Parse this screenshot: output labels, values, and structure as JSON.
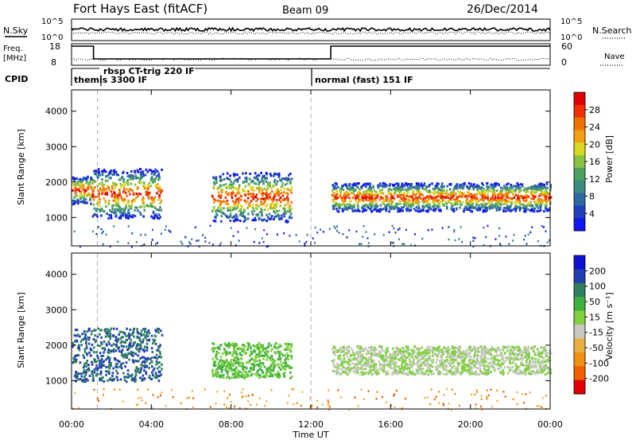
{
  "header": {
    "radar": "Fort Hays East (fitACF)",
    "beam": "Beam 09",
    "date": "26/Dec/2014"
  },
  "top_panels": {
    "nsky_label": "N.Sky",
    "nsky_ticks": [
      "10^5",
      "10^0"
    ],
    "nsky_ticks_right": [
      "10^5",
      "10^0"
    ],
    "nsearch_label": "N.Search",
    "freq_label": "Freq.",
    "freq_unit": "[MHz]",
    "freq_ticks": [
      "18",
      "8"
    ],
    "nave_ticks": [
      "60",
      "0"
    ],
    "nave_label": "Nave",
    "cpid_label": "CPID",
    "cpid_modes": [
      {
        "label": "themis 3300 IF",
        "start_hour": 0.0
      },
      {
        "label": "rbsp CT-trig 220 IF",
        "start_hour": 1.3
      },
      {
        "label": "normal (fast) 151 IF",
        "start_hour": 12.0
      }
    ]
  },
  "chart_data": [
    {
      "type": "heatmap",
      "name": "power",
      "ylabel": "Slant Range [km]",
      "xlabel": "Time UT",
      "xlim": [
        0,
        24
      ],
      "ylim": [
        200,
        4600
      ],
      "yticks": [
        1000,
        2000,
        3000,
        4000
      ],
      "xtick_labels": [
        "00:00",
        "04:00",
        "08:00",
        "12:00",
        "16:00",
        "20:00",
        "00:00"
      ],
      "colorbar": {
        "label": "Power [dB]",
        "tick_labels": [
          "4",
          "8",
          "12",
          "16",
          "20",
          "24",
          "28"
        ],
        "colors": [
          "#1018f0",
          "#2040c0",
          "#2e6aa0",
          "#3c8a80",
          "#4ca060",
          "#8cc040",
          "#d8d820",
          "#f0a010",
          "#f07000",
          "#f03000",
          "#e00000"
        ]
      },
      "scatter_bands": [
        {
          "hours": [
            0.0,
            1.0
          ],
          "range_km": [
            1400,
            2200
          ]
        },
        {
          "hours": [
            1.0,
            4.5
          ],
          "range_km": [
            1000,
            2400
          ]
        },
        {
          "hours": [
            7.0,
            11.0
          ],
          "range_km": [
            900,
            2300
          ]
        },
        {
          "hours": [
            13.0,
            24.0
          ],
          "range_km": [
            1200,
            2000
          ]
        }
      ]
    },
    {
      "type": "heatmap",
      "name": "velocity",
      "ylabel": "Slant Range [km]",
      "xlabel": "Time UT",
      "xlim": [
        0,
        24
      ],
      "ylim": [
        200,
        4600
      ],
      "yticks": [
        1000,
        2000,
        3000,
        4000
      ],
      "xtick_labels": [
        "00:00",
        "04:00",
        "08:00",
        "12:00",
        "16:00",
        "20:00",
        "00:00"
      ],
      "colorbar": {
        "label": "Velocity [m s⁻¹]",
        "tick_labels": [
          "200",
          "100",
          "50",
          "15",
          "-15",
          "-50",
          "-100",
          "-200"
        ],
        "colors": [
          "#1010d0",
          "#2040b0",
          "#308060",
          "#40b040",
          "#80d040",
          "#c8c8c0",
          "#e8b040",
          "#f09010",
          "#f06000",
          "#e00000"
        ]
      },
      "scatter_bands": [
        {
          "hours": [
            0.0,
            4.5
          ],
          "range_km": [
            1000,
            2500
          ],
          "velocity": "100"
        },
        {
          "hours": [
            7.0,
            11.0
          ],
          "range_km": [
            1100,
            2100
          ],
          "velocity": "15"
        },
        {
          "hours": [
            13.0,
            24.0
          ],
          "range_km": [
            1200,
            2000
          ],
          "velocity": "-15"
        }
      ]
    }
  ],
  "xaxis": {
    "label": "Time UT"
  }
}
